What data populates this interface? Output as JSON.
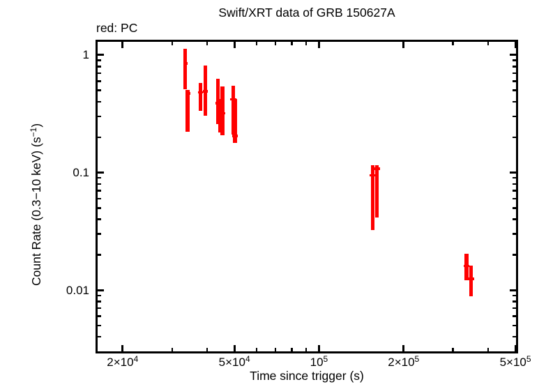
{
  "title": "Swift/XRT data of GRB 150627A",
  "legend": "red: PC",
  "colors": {
    "pc": "#ff0000",
    "axis": "#000000",
    "background": "#ffffff"
  },
  "chart_data": {
    "type": "scatter",
    "subtype": "errorbar-light-curve",
    "title": "Swift/XRT data of GRB 150627A",
    "legend_text": "red: PC",
    "xlabel": "Time since trigger (s)",
    "ylabel": "Count Rate (0.3−10 keV) (s^-1)",
    "ylabel_parts": {
      "pre": "Count Rate (0.3−10 keV) (s",
      "sup": "−1",
      "post": ")"
    },
    "xscale": "log",
    "yscale": "log",
    "xlim": [
      16300,
      502600
    ],
    "ylim": [
      0.00301,
      1.295
    ],
    "grid": false,
    "x_ticks_major": [
      {
        "value": 20000,
        "label": "2×10^4"
      },
      {
        "value": 50000,
        "label": "5×10^4"
      },
      {
        "value": 100000,
        "label": "10^5"
      },
      {
        "value": 200000,
        "label": "2×10^5"
      },
      {
        "value": 500000,
        "label": "5×10^5"
      }
    ],
    "x_ticks_minor": [
      30000,
      40000,
      60000,
      70000,
      80000,
      90000,
      300000,
      400000
    ],
    "y_ticks_major": [
      {
        "value": 1,
        "label": "1"
      },
      {
        "value": 0.1,
        "label": "0.1"
      },
      {
        "value": 0.01,
        "label": "0.01"
      }
    ],
    "y_ticks_minor": [
      0.9,
      0.8,
      0.7,
      0.6,
      0.5,
      0.4,
      0.3,
      0.2,
      0.09,
      0.08,
      0.07,
      0.06,
      0.05,
      0.04,
      0.03,
      0.02,
      0.009,
      0.008,
      0.007,
      0.006,
      0.005,
      0.004
    ],
    "series": [
      {
        "name": "PC",
        "color": "#ff0000",
        "points": [
          {
            "t": 33400,
            "t_lo": 32900,
            "t_hi": 34100,
            "rate": 0.85,
            "rate_lo": 0.51,
            "rate_hi": 1.13
          },
          {
            "t": 34100,
            "t_lo": 33500,
            "t_hi": 34800,
            "rate": 0.47,
            "rate_lo": 0.223,
            "rate_hi": 0.506
          },
          {
            "t": 37900,
            "t_lo": 37200,
            "t_hi": 38600,
            "rate": 0.48,
            "rate_lo": 0.336,
            "rate_hi": 0.58
          },
          {
            "t": 39400,
            "t_lo": 38600,
            "t_hi": 40300,
            "rate": 0.49,
            "rate_lo": 0.306,
            "rate_hi": 0.815
          },
          {
            "t": 43700,
            "t_lo": 42800,
            "t_hi": 44700,
            "rate": 0.39,
            "rate_lo": 0.26,
            "rate_hi": 0.63
          },
          {
            "t": 44600,
            "t_lo": 43700,
            "t_hi": 45600,
            "rate": 0.3,
            "rate_lo": 0.218,
            "rate_hi": 0.42
          },
          {
            "t": 45300,
            "t_lo": 44400,
            "t_hi": 46300,
            "rate": 0.32,
            "rate_lo": 0.208,
            "rate_hi": 0.54
          },
          {
            "t": 49500,
            "t_lo": 48400,
            "t_hi": 50700,
            "rate": 0.42,
            "rate_lo": 0.21,
            "rate_hi": 0.55
          },
          {
            "t": 50300,
            "t_lo": 49200,
            "t_hi": 51500,
            "rate": 0.205,
            "rate_lo": 0.178,
            "rate_hi": 0.42
          },
          {
            "t": 155200,
            "t_lo": 151300,
            "t_hi": 159000,
            "rate": 0.095,
            "rate_lo": 0.0326,
            "rate_hi": 0.116
          },
          {
            "t": 160600,
            "t_lo": 156800,
            "t_hi": 164500,
            "rate": 0.108,
            "rate_lo": 0.0417,
            "rate_hi": 0.115
          },
          {
            "t": 335000,
            "t_lo": 327000,
            "t_hi": 343000,
            "rate": 0.016,
            "rate_lo": 0.0121,
            "rate_hi": 0.0203
          },
          {
            "t": 348000,
            "t_lo": 340000,
            "t_hi": 356000,
            "rate": 0.0125,
            "rate_lo": 0.0088,
            "rate_hi": 0.0161
          }
        ]
      }
    ]
  }
}
